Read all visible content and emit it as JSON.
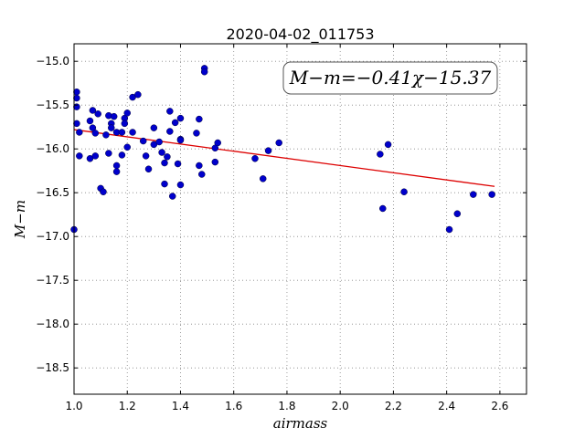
{
  "chart_data": {
    "type": "scatter",
    "title": "2020-04-02_011753",
    "xlabel": "airmass",
    "ylabel": "M−m",
    "xlim": [
      1.0,
      2.7
    ],
    "ylim": [
      -18.8,
      -14.8
    ],
    "x_ticks": [
      1.0,
      1.2,
      1.4,
      1.6,
      1.8,
      2.0,
      2.2,
      2.4,
      2.6
    ],
    "x_tick_labels": [
      "1.0",
      "1.2",
      "1.4",
      "1.6",
      "1.8",
      "2.0",
      "2.2",
      "2.4",
      "2.6"
    ],
    "y_ticks": [
      -15.0,
      -15.5,
      -16.0,
      -16.5,
      -17.0,
      -17.5,
      -18.0,
      -18.5
    ],
    "y_tick_labels": [
      "−15.0",
      "−15.5",
      "−16.0",
      "−16.5",
      "−17.0",
      "−17.5",
      "−18.0",
      "−18.5"
    ],
    "grid": true,
    "annotation": "M−m=−0.41χ−15.37",
    "fit": {
      "slope": -0.41,
      "intercept": -15.37,
      "x_range": [
        1.0,
        2.58
      ]
    },
    "colors": {
      "points": "#0000cc",
      "fit_line": "#dd0000",
      "grid": "#888888"
    },
    "points": [
      [
        1.0,
        -16.92
      ],
      [
        1.01,
        -15.35
      ],
      [
        1.01,
        -15.42
      ],
      [
        1.01,
        -15.52
      ],
      [
        1.01,
        -15.71
      ],
      [
        1.02,
        -15.81
      ],
      [
        1.02,
        -16.08
      ],
      [
        1.06,
        -15.68
      ],
      [
        1.06,
        -16.11
      ],
      [
        1.07,
        -15.56
      ],
      [
        1.07,
        -15.76
      ],
      [
        1.08,
        -15.82
      ],
      [
        1.08,
        -16.08
      ],
      [
        1.09,
        -15.6
      ],
      [
        1.1,
        -16.45
      ],
      [
        1.11,
        -16.49
      ],
      [
        1.12,
        -15.84
      ],
      [
        1.13,
        -15.62
      ],
      [
        1.13,
        -16.05
      ],
      [
        1.14,
        -15.71
      ],
      [
        1.14,
        -15.76
      ],
      [
        1.15,
        -15.63
      ],
      [
        1.16,
        -15.81
      ],
      [
        1.16,
        -16.19
      ],
      [
        1.16,
        -16.26
      ],
      [
        1.18,
        -15.81
      ],
      [
        1.18,
        -16.07
      ],
      [
        1.19,
        -15.65
      ],
      [
        1.19,
        -15.71
      ],
      [
        1.2,
        -15.59
      ],
      [
        1.2,
        -15.98
      ],
      [
        1.22,
        -15.41
      ],
      [
        1.22,
        -15.81
      ],
      [
        1.24,
        -15.38
      ],
      [
        1.26,
        -15.91
      ],
      [
        1.27,
        -16.08
      ],
      [
        1.28,
        -16.23
      ],
      [
        1.3,
        -15.76
      ],
      [
        1.3,
        -15.95
      ],
      [
        1.32,
        -15.92
      ],
      [
        1.33,
        -16.04
      ],
      [
        1.34,
        -16.16
      ],
      [
        1.34,
        -16.4
      ],
      [
        1.35,
        -16.09
      ],
      [
        1.36,
        -15.8
      ],
      [
        1.36,
        -15.57
      ],
      [
        1.37,
        -16.54
      ],
      [
        1.38,
        -15.7
      ],
      [
        1.39,
        -16.17
      ],
      [
        1.4,
        -15.65
      ],
      [
        1.4,
        -15.89
      ],
      [
        1.4,
        -15.9
      ],
      [
        1.4,
        -16.41
      ],
      [
        1.46,
        -15.82
      ],
      [
        1.47,
        -16.19
      ],
      [
        1.47,
        -15.66
      ],
      [
        1.48,
        -16.29
      ],
      [
        1.49,
        -15.08
      ],
      [
        1.49,
        -15.12
      ],
      [
        1.53,
        -15.99
      ],
      [
        1.53,
        -16.15
      ],
      [
        1.54,
        -15.93
      ],
      [
        1.68,
        -16.11
      ],
      [
        1.71,
        -16.34
      ],
      [
        1.73,
        -16.02
      ],
      [
        1.77,
        -15.93
      ],
      [
        2.15,
        -16.06
      ],
      [
        2.16,
        -16.68
      ],
      [
        2.18,
        -15.95
      ],
      [
        2.24,
        -16.49
      ],
      [
        2.41,
        -16.92
      ],
      [
        2.44,
        -16.74
      ],
      [
        2.5,
        -16.52
      ],
      [
        2.57,
        -16.52
      ]
    ]
  }
}
